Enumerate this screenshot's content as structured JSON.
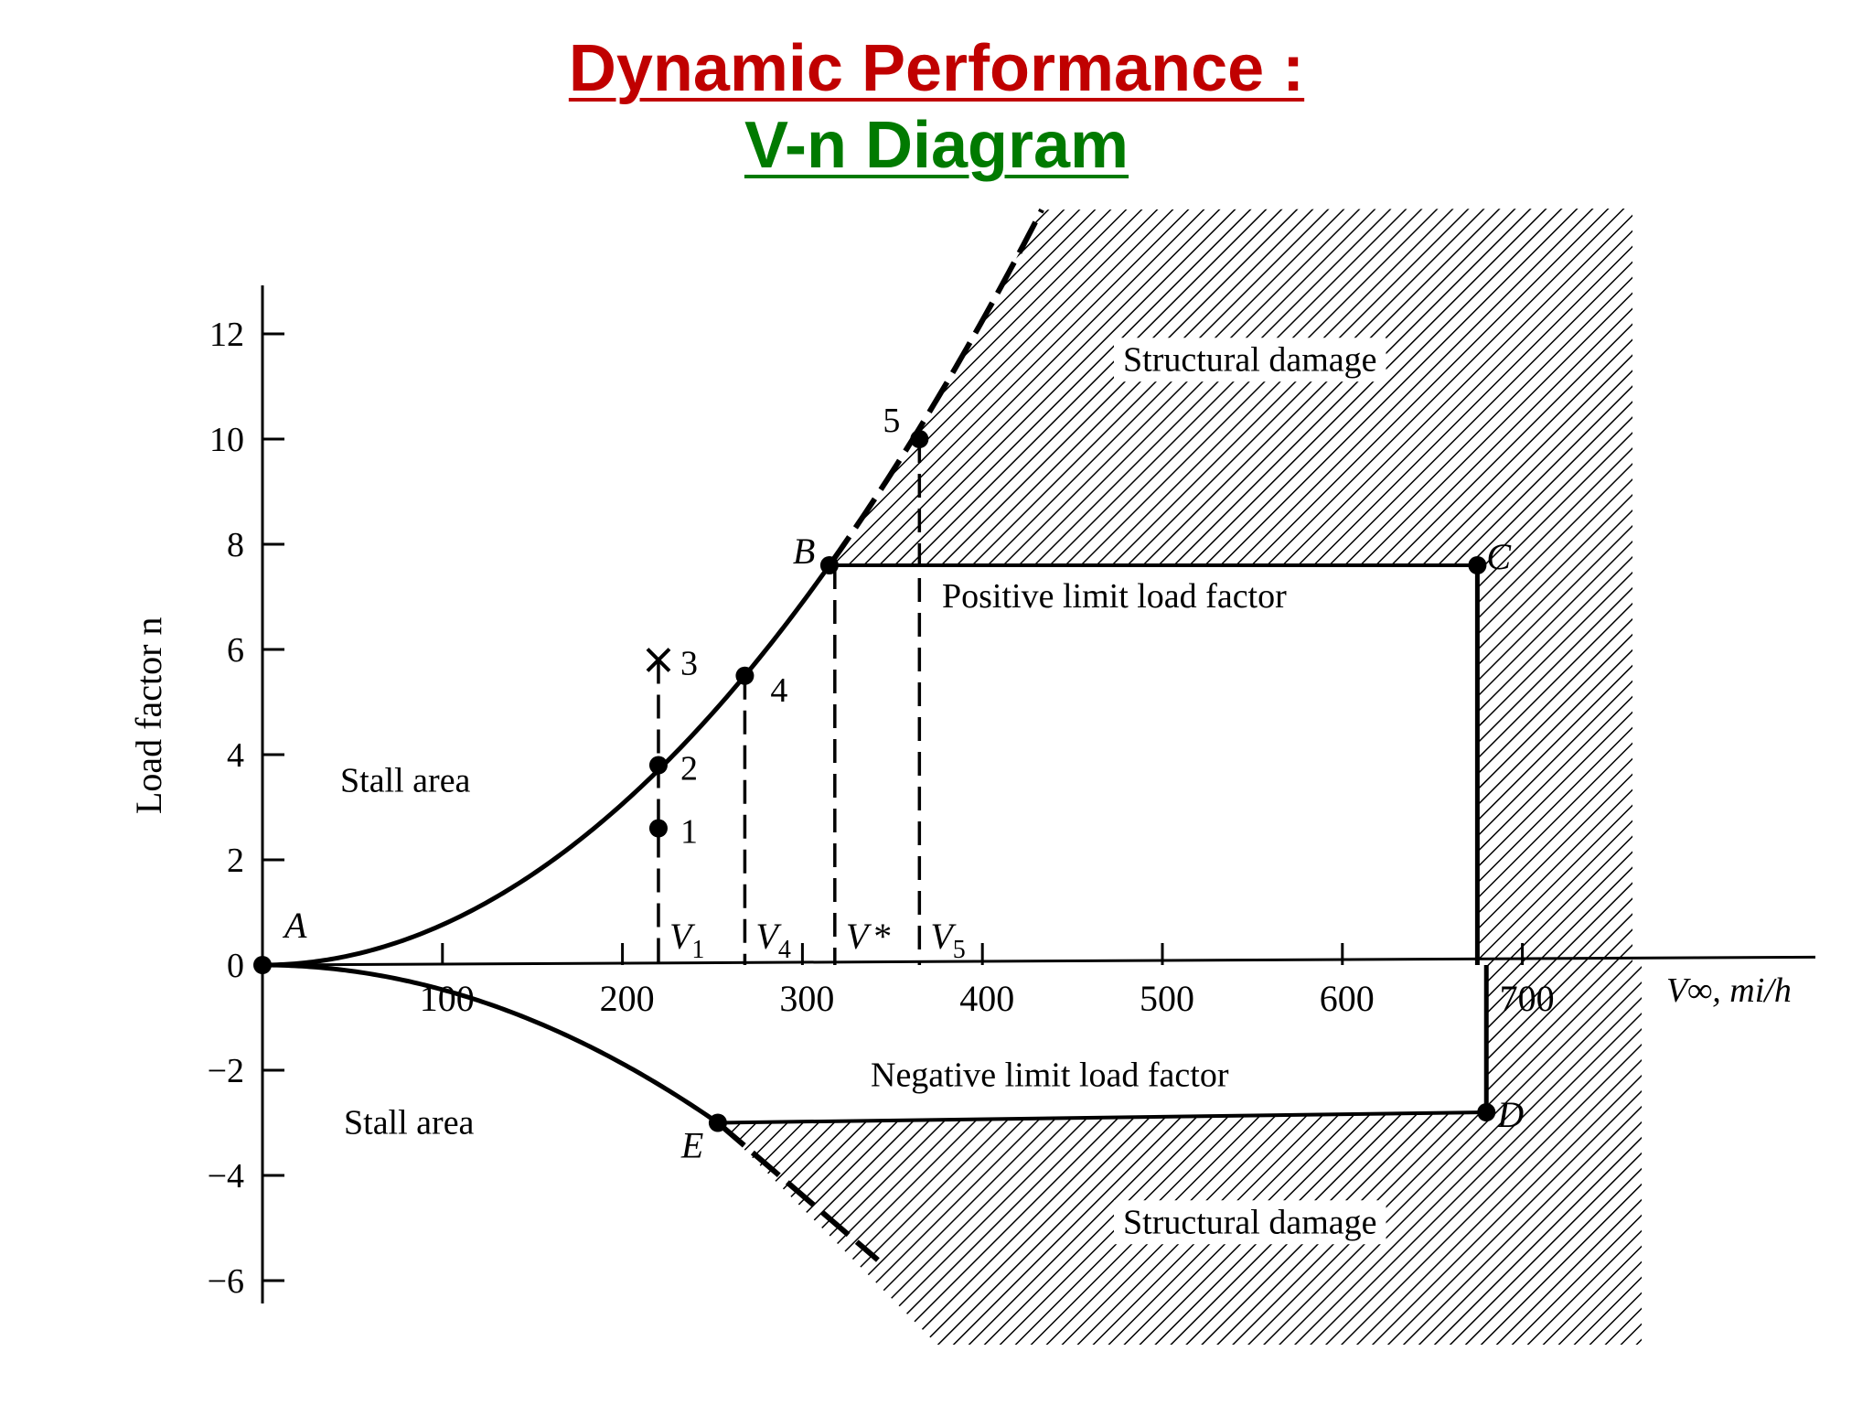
{
  "slide": {
    "title": "Dynamic Performance :",
    "subtitle": "V-n Diagram",
    "title_color": "#c00000",
    "subtitle_color": "#007a00"
  },
  "chart_data": {
    "type": "line",
    "xlabel": "V∞, mi/h",
    "ylabel": "Load factor n",
    "xlim": [
      0,
      870
    ],
    "ylim": [
      -6,
      13
    ],
    "x_ticks": [
      100,
      200,
      300,
      400,
      500,
      600,
      700
    ],
    "y_ticks": [
      12,
      10,
      8,
      6,
      4,
      2,
      0,
      -2,
      -4,
      -6
    ],
    "y_tick_labels": [
      "12",
      "10",
      "8",
      "6",
      "4",
      "2",
      "0",
      "−2",
      "−4",
      "−6"
    ],
    "points": [
      {
        "label": "A",
        "x": 0,
        "y": 0
      },
      {
        "label": "B",
        "x": 315,
        "y": 7.6
      },
      {
        "label": "C",
        "x": 675,
        "y": 7.6
      },
      {
        "label": "D",
        "x": 680,
        "y": -2.8
      },
      {
        "label": "E",
        "x": 253,
        "y": -3.0
      }
    ],
    "numbered_points": [
      {
        "label": "1",
        "x": 220,
        "y": 2.6,
        "marker": "dot"
      },
      {
        "label": "2",
        "x": 220,
        "y": 3.8,
        "marker": "dot"
      },
      {
        "label": "3",
        "x": 220,
        "y": 5.8,
        "marker": "cross"
      },
      {
        "label": "4",
        "x": 268,
        "y": 5.5,
        "marker": "dot"
      },
      {
        "label": "5",
        "x": 365,
        "y": 10.0,
        "marker": "dot"
      }
    ],
    "velocity_markers": [
      {
        "label": "V1",
        "base": "V",
        "sub": "1",
        "x": 220
      },
      {
        "label": "V4",
        "base": "V",
        "sub": "4",
        "x": 268
      },
      {
        "label": "V*",
        "base": "V",
        "sub": "*",
        "x": 318
      },
      {
        "label": "V5",
        "base": "V",
        "sub": "5",
        "x": 365
      }
    ],
    "region_labels": {
      "stall_upper": "Stall area",
      "stall_lower": "Stall area",
      "positive_limit": "Positive limit load factor",
      "negative_limit": "Negative limit load factor",
      "structural_upper": "Structural damage",
      "structural_lower": "Structural damage"
    }
  }
}
